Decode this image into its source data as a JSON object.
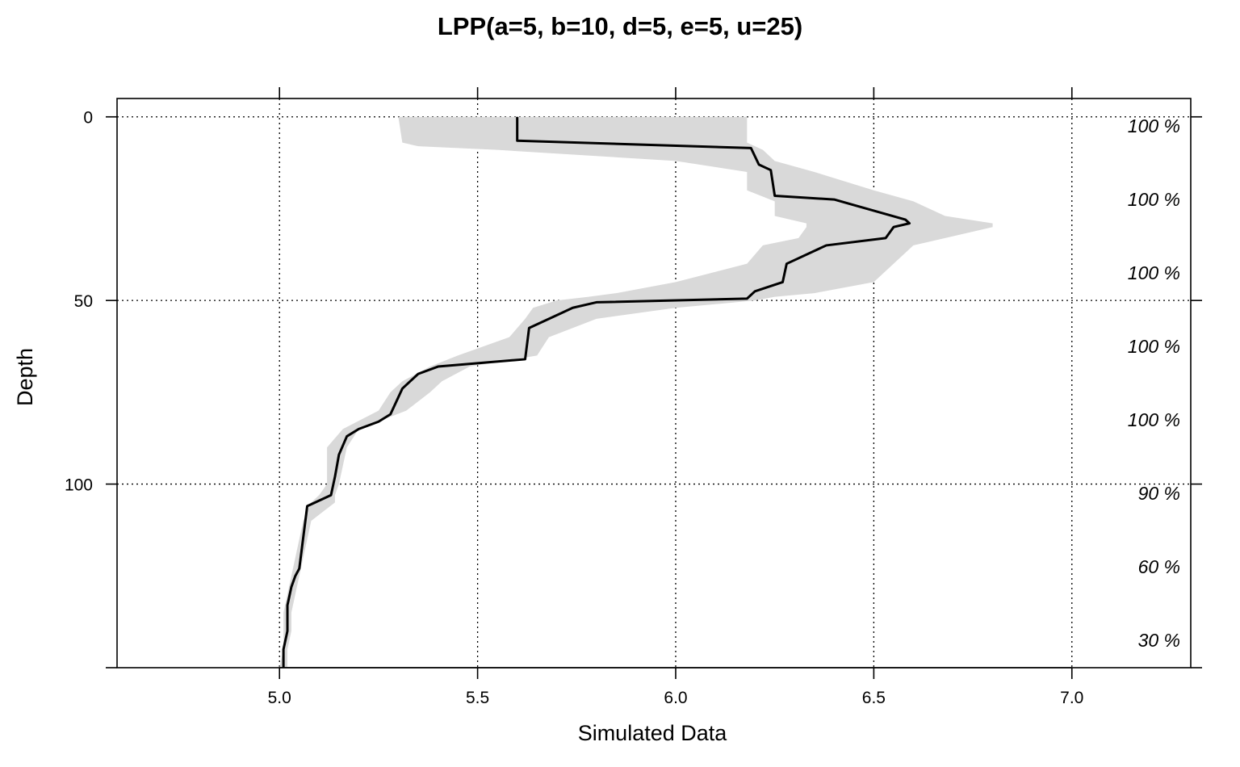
{
  "chart_data": {
    "type": "area",
    "title": "LPP(a=5, b=10, d=5, e=5, u=25)",
    "xlabel": "Simulated Data",
    "ylabel": "Depth",
    "xlim": [
      4.59,
      7.3
    ],
    "ylim": [
      -5,
      150
    ],
    "y_reversed": true,
    "grid": true,
    "x_ticks": [
      5.0,
      5.5,
      6.0,
      6.5,
      7.0
    ],
    "x_tick_labels": [
      "5.0",
      "5.5",
      "6.0",
      "6.5",
      "7.0"
    ],
    "y_ticks": [
      0,
      50,
      100
    ],
    "y_tick_labels": [
      "0",
      "50",
      "100"
    ],
    "percent_labels": [
      {
        "depth": 2.5,
        "text": "100 %"
      },
      {
        "depth": 22.5,
        "text": "100 %"
      },
      {
        "depth": 42.5,
        "text": "100 %"
      },
      {
        "depth": 62.5,
        "text": "100 %"
      },
      {
        "depth": 82.5,
        "text": "100 %"
      },
      {
        "depth": 102.5,
        "text": "90 %"
      },
      {
        "depth": 122.5,
        "text": "60 %"
      },
      {
        "depth": 142.5,
        "text": "30 %"
      }
    ],
    "series": [
      {
        "type": "band",
        "color": "#d9d9d9",
        "depth": [
          0,
          7,
          8,
          9,
          12,
          15,
          20,
          23,
          27,
          29,
          30,
          33,
          35,
          40,
          45,
          48,
          49,
          50,
          52,
          55,
          60,
          65,
          68,
          72,
          75,
          80,
          85,
          90,
          95,
          100,
          103,
          105,
          110,
          115,
          120,
          125,
          130,
          135,
          140,
          145,
          150
        ],
        "lower": [
          5.3,
          5.31,
          5.35,
          5.55,
          6.0,
          6.18,
          6.18,
          6.25,
          6.25,
          6.33,
          6.33,
          6.31,
          6.22,
          6.18,
          6.0,
          5.85,
          5.78,
          5.7,
          5.64,
          5.62,
          5.58,
          5.45,
          5.38,
          5.31,
          5.28,
          5.25,
          5.16,
          5.12,
          5.12,
          5.12,
          5.1,
          5.08,
          5.06,
          5.05,
          5.04,
          5.03,
          5.02,
          5.01,
          5.01,
          5.01,
          5.0
        ],
        "upper": [
          6.18,
          6.18,
          6.2,
          6.22,
          6.25,
          6.35,
          6.5,
          6.6,
          6.68,
          6.8,
          6.8,
          6.68,
          6.6,
          6.55,
          6.5,
          6.35,
          6.25,
          6.2,
          6.0,
          5.8,
          5.68,
          5.65,
          5.48,
          5.41,
          5.38,
          5.32,
          5.2,
          5.17,
          5.16,
          5.15,
          5.14,
          5.14,
          5.08,
          5.07,
          5.06,
          5.05,
          5.04,
          5.03,
          5.03,
          5.02,
          5.02
        ]
      },
      {
        "type": "line",
        "color": "#000000",
        "depth": [
          0,
          6.5,
          6.5,
          8.5,
          8.5,
          13,
          13,
          14.5,
          14.5,
          21.5,
          21.5,
          22.5,
          22.5,
          28,
          28,
          29,
          29,
          30,
          30,
          33,
          33,
          35,
          35,
          40,
          40,
          45,
          45,
          47.5,
          47.5,
          49.5,
          49.5,
          50.5,
          50.5,
          52,
          52,
          54,
          54,
          57.5,
          57.5,
          66,
          66,
          68,
          68,
          70,
          70,
          74,
          74,
          81,
          81,
          83,
          83,
          85,
          85,
          87,
          87,
          92,
          92,
          98,
          98,
          103,
          103,
          106,
          106,
          123,
          123,
          125,
          125,
          128,
          128,
          133,
          133,
          140,
          140,
          145,
          145,
          150
        ],
        "x": [
          5.6,
          5.6,
          5.6,
          6.19,
          6.19,
          6.21,
          6.21,
          6.24,
          6.24,
          6.25,
          6.25,
          6.4,
          6.4,
          6.58,
          6.58,
          6.59,
          6.59,
          6.55,
          6.55,
          6.53,
          6.53,
          6.38,
          6.38,
          6.28,
          6.28,
          6.27,
          6.27,
          6.2,
          6.2,
          6.18,
          6.18,
          5.8,
          5.8,
          5.74,
          5.74,
          5.7,
          5.7,
          5.63,
          5.63,
          5.62,
          5.62,
          5.4,
          5.4,
          5.35,
          5.35,
          5.31,
          5.31,
          5.28,
          5.28,
          5.25,
          5.25,
          5.2,
          5.2,
          5.17,
          5.17,
          5.15,
          5.15,
          5.14,
          5.14,
          5.13,
          5.13,
          5.07,
          5.07,
          5.05,
          5.05,
          5.04,
          5.04,
          5.03,
          5.03,
          5.02,
          5.02,
          5.02,
          5.02,
          5.01,
          5.01,
          5.01
        ]
      }
    ]
  }
}
